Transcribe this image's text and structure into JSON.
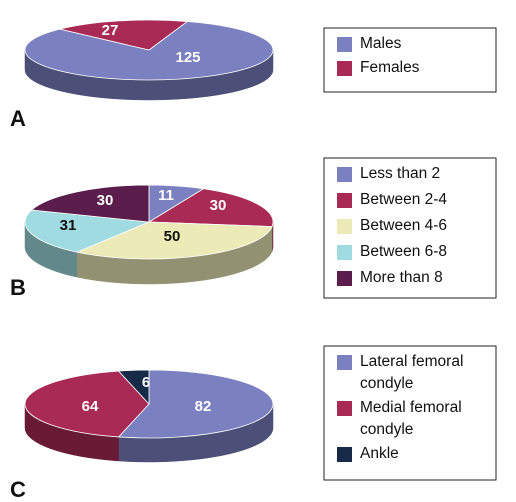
{
  "chart_data": [
    {
      "type": "pie",
      "panel": "A",
      "categories": [
        "Males",
        "Females"
      ],
      "values": [
        125,
        27
      ],
      "colors": [
        "#7b80c0",
        "#a92a55"
      ],
      "legend_position": "right"
    },
    {
      "type": "pie",
      "panel": "B",
      "categories": [
        "Less than 2",
        "Between 2-4",
        "Between 4-6",
        "Between 6-8",
        "More than 8"
      ],
      "values": [
        11,
        30,
        50,
        31,
        30
      ],
      "colors": [
        "#7b80c0",
        "#a92a55",
        "#eceab7",
        "#9fdbe0",
        "#5b1d4b"
      ],
      "legend_position": "right"
    },
    {
      "type": "pie",
      "panel": "C",
      "categories": [
        "Lateral femoral condyle",
        "Medial femoral condyle",
        "Ankle"
      ],
      "legend_lines": [
        [
          "Lateral femoral",
          "condyle"
        ],
        [
          "Medial femoral",
          "condyle"
        ],
        [
          "Ankle"
        ]
      ],
      "values": [
        82,
        64,
        6
      ],
      "colors": [
        "#7b80c0",
        "#a92a55",
        "#172a48"
      ],
      "legend_position": "right"
    }
  ]
}
